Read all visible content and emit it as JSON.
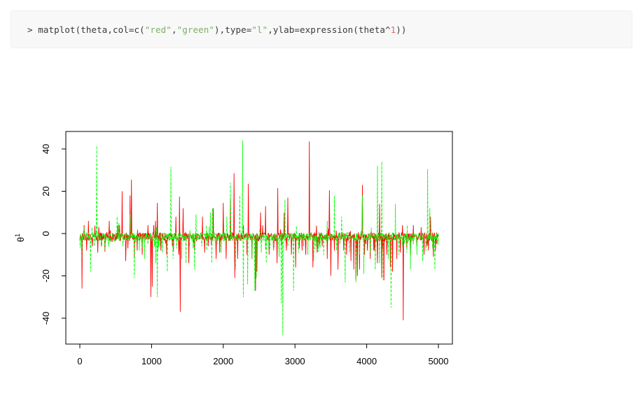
{
  "code": {
    "prompt": ">",
    "fn": "matplot(theta,col=c(",
    "s1": "\"red\"",
    "sep1": ",",
    "s2": "\"green\"",
    "mid": "),type=",
    "s3": "\"l\"",
    "tail1": ",ylab=expression(theta^",
    "num": "1",
    "tail2": "))"
  },
  "chart_data": {
    "type": "line",
    "title": "",
    "xlabel": "",
    "ylabel_base": "θ",
    "ylabel_sup": "1",
    "xlim": [
      0,
      5000
    ],
    "ylim": [
      -48,
      45
    ],
    "x_ticks": [
      0,
      1000,
      2000,
      3000,
      4000,
      5000
    ],
    "y_ticks": [
      -40,
      -20,
      0,
      20,
      40
    ],
    "grid": false,
    "legend": "none",
    "n_points": 5000,
    "series": [
      {
        "color": "#ff0000",
        "line_style": "solid",
        "baseline": -1.5,
        "spikes": [
          [
            30,
            -26
          ],
          [
            60,
            4
          ],
          [
            95,
            -8
          ],
          [
            120,
            6
          ],
          [
            175,
            -6
          ],
          [
            250,
            -9
          ],
          [
            300,
            -6
          ],
          [
            410,
            6
          ],
          [
            450,
            -4
          ],
          [
            530,
            4
          ],
          [
            590,
            20
          ],
          [
            640,
            -13
          ],
          [
            700,
            18
          ],
          [
            720,
            25.5
          ],
          [
            760,
            -12
          ],
          [
            800,
            -8
          ],
          [
            870,
            -10
          ],
          [
            950,
            4
          ],
          [
            990,
            -30
          ],
          [
            1010,
            -25
          ],
          [
            1030,
            4
          ],
          [
            1055,
            6
          ],
          [
            1080,
            14.5
          ],
          [
            1130,
            -8
          ],
          [
            1210,
            -10
          ],
          [
            1290,
            -6
          ],
          [
            1340,
            8
          ],
          [
            1380,
            -10
          ],
          [
            1390,
            17.5
          ],
          [
            1400,
            -37
          ],
          [
            1440,
            12
          ],
          [
            1520,
            -14
          ],
          [
            1600,
            -8
          ],
          [
            1710,
            8
          ],
          [
            1740,
            -9
          ],
          [
            1790,
            -6
          ],
          [
            1860,
            12
          ],
          [
            1900,
            -12
          ],
          [
            1950,
            -9
          ],
          [
            2000,
            14.5
          ],
          [
            2040,
            -12
          ],
          [
            2100,
            17
          ],
          [
            2150,
            28.5
          ],
          [
            2160,
            -21
          ],
          [
            2200,
            -12
          ],
          [
            2280,
            4
          ],
          [
            2330,
            -10
          ],
          [
            2350,
            23.5
          ],
          [
            2400,
            -12
          ],
          [
            2450,
            -27
          ],
          [
            2470,
            -18
          ],
          [
            2520,
            10
          ],
          [
            2550,
            4
          ],
          [
            2590,
            13
          ],
          [
            2640,
            -10
          ],
          [
            2700,
            -8
          ],
          [
            2750,
            -14
          ],
          [
            2760,
            21.5
          ],
          [
            2850,
            10
          ],
          [
            2880,
            -8
          ],
          [
            2900,
            17
          ],
          [
            2950,
            -10
          ],
          [
            3010,
            -16
          ],
          [
            3060,
            -7
          ],
          [
            3100,
            -8
          ],
          [
            3150,
            -10
          ],
          [
            3200,
            43.5
          ],
          [
            3250,
            -16
          ],
          [
            3310,
            -9
          ],
          [
            3380,
            -6
          ],
          [
            3450,
            -12
          ],
          [
            3480,
            20.5
          ],
          [
            3500,
            -20
          ],
          [
            3550,
            -8
          ],
          [
            3600,
            -17
          ],
          [
            3680,
            -8
          ],
          [
            3720,
            -10
          ],
          [
            3780,
            -13
          ],
          [
            3820,
            -17
          ],
          [
            3850,
            -22
          ],
          [
            3870,
            -20
          ],
          [
            3900,
            -17
          ],
          [
            3940,
            23
          ],
          [
            3970,
            -10
          ],
          [
            4010,
            -8
          ],
          [
            4050,
            -12
          ],
          [
            4100,
            -8
          ],
          [
            4150,
            -14
          ],
          [
            4180,
            14
          ],
          [
            4210,
            -21
          ],
          [
            4240,
            -22
          ],
          [
            4280,
            -10
          ],
          [
            4330,
            -16
          ],
          [
            4360,
            -18
          ],
          [
            4420,
            -12
          ],
          [
            4470,
            -9
          ],
          [
            4500,
            4
          ],
          [
            4510,
            -41
          ],
          [
            4560,
            -7
          ],
          [
            4610,
            -10
          ],
          [
            4650,
            4
          ],
          [
            4700,
            -6
          ],
          [
            4760,
            3
          ],
          [
            4800,
            -10
          ],
          [
            4860,
            -8
          ],
          [
            4890,
            8
          ],
          [
            4930,
            -11
          ],
          [
            4960,
            -8
          ]
        ]
      },
      {
        "color": "#00ff00",
        "line_style": "dashed",
        "baseline": -1.5,
        "spikes": [
          [
            25,
            -12
          ],
          [
            60,
            3
          ],
          [
            150,
            -18
          ],
          [
            200,
            -6
          ],
          [
            235,
            41.5
          ],
          [
            300,
            -5
          ],
          [
            350,
            -8
          ],
          [
            430,
            -4
          ],
          [
            520,
            8
          ],
          [
            545,
            5
          ],
          [
            600,
            -6
          ],
          [
            700,
            9
          ],
          [
            760,
            -21
          ],
          [
            830,
            -8
          ],
          [
            900,
            -12
          ],
          [
            950,
            -5
          ],
          [
            1060,
            -14
          ],
          [
            1080,
            -30
          ],
          [
            1150,
            -9
          ],
          [
            1220,
            -18
          ],
          [
            1270,
            31.5
          ],
          [
            1300,
            -12
          ],
          [
            1350,
            -7
          ],
          [
            1420,
            -12
          ],
          [
            1480,
            -14
          ],
          [
            1530,
            -6
          ],
          [
            1600,
            -17
          ],
          [
            1620,
            9
          ],
          [
            1700,
            -6
          ],
          [
            1770,
            -8
          ],
          [
            1820,
            10
          ],
          [
            1840,
            -14
          ],
          [
            1850,
            12
          ],
          [
            1920,
            -5
          ],
          [
            1970,
            -9
          ],
          [
            2050,
            8
          ],
          [
            2100,
            24
          ],
          [
            2170,
            -17
          ],
          [
            2230,
            18
          ],
          [
            2270,
            44
          ],
          [
            2280,
            -30
          ],
          [
            2340,
            -24
          ],
          [
            2400,
            -12
          ],
          [
            2440,
            -27
          ],
          [
            2460,
            -21
          ],
          [
            2530,
            -9
          ],
          [
            2600,
            -14
          ],
          [
            2650,
            -7
          ],
          [
            2700,
            -8
          ],
          [
            2780,
            -11
          ],
          [
            2810,
            -33
          ],
          [
            2830,
            -48
          ],
          [
            2860,
            16
          ],
          [
            2900,
            -6
          ],
          [
            2980,
            -27
          ],
          [
            3050,
            -9
          ],
          [
            3120,
            -6
          ],
          [
            3180,
            -10
          ],
          [
            3260,
            -13
          ],
          [
            3320,
            -8
          ],
          [
            3400,
            -10
          ],
          [
            3450,
            6
          ],
          [
            3550,
            18
          ],
          [
            3580,
            -8
          ],
          [
            3650,
            8
          ],
          [
            3700,
            -23
          ],
          [
            3760,
            -9
          ],
          [
            3850,
            -23
          ],
          [
            3900,
            -10
          ],
          [
            3940,
            18
          ],
          [
            3960,
            -19
          ],
          [
            4050,
            -9
          ],
          [
            4120,
            -17
          ],
          [
            4150,
            32
          ],
          [
            4180,
            -14
          ],
          [
            4210,
            34
          ],
          [
            4230,
            -22
          ],
          [
            4300,
            -12
          ],
          [
            4340,
            -35
          ],
          [
            4400,
            14
          ],
          [
            4450,
            -10
          ],
          [
            4500,
            -6
          ],
          [
            4560,
            -9
          ],
          [
            4610,
            -17
          ],
          [
            4650,
            -5
          ],
          [
            4700,
            -10
          ],
          [
            4780,
            -13
          ],
          [
            4850,
            30.5
          ],
          [
            4880,
            12
          ],
          [
            4920,
            -7
          ],
          [
            4950,
            -17
          ],
          [
            4980,
            -5
          ]
        ]
      }
    ]
  }
}
